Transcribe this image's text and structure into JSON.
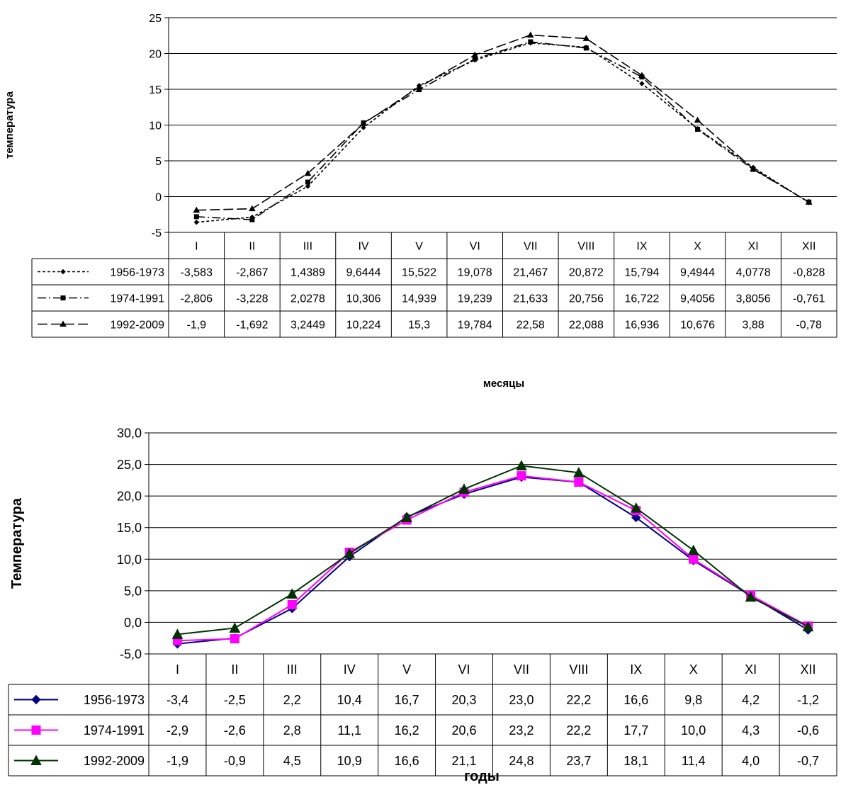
{
  "chart_data": [
    {
      "type": "line",
      "title": "",
      "ylabel": "температура",
      "xlabel": "месяцы",
      "ylim": [
        -5,
        25
      ],
      "yticks": [
        "25",
        "20",
        "15",
        "10",
        "5",
        "0",
        "-5"
      ],
      "grid": true,
      "legend": "data-table",
      "categories": [
        "I",
        "II",
        "III",
        "IV",
        "V",
        "VI",
        "VII",
        "VIII",
        "IX",
        "X",
        "XI",
        "XII"
      ],
      "series": [
        {
          "name": "1956-1973",
          "color": "#000000",
          "dash": "short",
          "marker": "diamond",
          "values": [
            -3.583,
            -2.867,
            1.4389,
            9.6444,
            15.522,
            19.078,
            21.467,
            20.872,
            15.794,
            9.4944,
            4.0778,
            -0.828
          ],
          "labels": [
            "-3,583",
            "-2,867",
            "1,4389",
            "9,6444",
            "15,522",
            "19,078",
            "21,467",
            "20,872",
            "15,794",
            "9,4944",
            "4,0778",
            "-0,828"
          ]
        },
        {
          "name": "1974-1991",
          "color": "#000000",
          "dash": "dash-dot",
          "marker": "square",
          "values": [
            -2.806,
            -3.228,
            2.0278,
            10.306,
            14.939,
            19.239,
            21.633,
            20.756,
            16.722,
            9.4056,
            3.8056,
            -0.761
          ],
          "labels": [
            "-2,806",
            "-3,228",
            "2,0278",
            "10,306",
            "14,939",
            "19,239",
            "21,633",
            "20,756",
            "16,722",
            "9,4056",
            "3,8056",
            "-0,761"
          ]
        },
        {
          "name": "1992-2009",
          "color": "#000000",
          "dash": "long",
          "marker": "triangle",
          "values": [
            -1.9,
            -1.692,
            3.2449,
            10.224,
            15.3,
            19.784,
            22.58,
            22.088,
            16.936,
            10.676,
            3.88,
            -0.78
          ],
          "labels": [
            "-1,9",
            "-1,692",
            "3,2449",
            "10,224",
            "15,3",
            "19,784",
            "22,58",
            "22,088",
            "16,936",
            "10,676",
            "3,88",
            "-0,78"
          ]
        }
      ]
    },
    {
      "type": "line",
      "title": "",
      "ylabel": "Температура",
      "xlabel": "годы",
      "ylim": [
        -5,
        30
      ],
      "yticks": [
        "30,0",
        "25,0",
        "20,0",
        "15,0",
        "10,0",
        "5,0",
        "0,0",
        "-5,0"
      ],
      "grid": true,
      "legend": "data-table",
      "categories": [
        "I",
        "II",
        "III",
        "IV",
        "V",
        "VI",
        "VII",
        "VIII",
        "IX",
        "X",
        "XI",
        "XII"
      ],
      "series": [
        {
          "name": "1956-1973",
          "color": "#000080",
          "marker": "diamond",
          "values": [
            -3.4,
            -2.5,
            2.2,
            10.4,
            16.7,
            20.3,
            23.0,
            22.2,
            16.6,
            9.8,
            4.2,
            -1.2
          ],
          "labels": [
            "-3,4",
            "-2,5",
            "2,2",
            "10,4",
            "16,7",
            "20,3",
            "23,0",
            "22,2",
            "16,6",
            "9,8",
            "4,2",
            "-1,2"
          ]
        },
        {
          "name": "1974-1991",
          "color": "#ff00ff",
          "marker": "square",
          "values": [
            -2.9,
            -2.6,
            2.8,
            11.1,
            16.2,
            20.6,
            23.2,
            22.2,
            17.7,
            10.0,
            4.3,
            -0.6
          ],
          "labels": [
            "-2,9",
            "-2,6",
            "2,8",
            "11,1",
            "16,2",
            "20,6",
            "23,2",
            "22,2",
            "17,7",
            "10,0",
            "4,3",
            "-0,6"
          ]
        },
        {
          "name": "1992-2009",
          "color": "#003300",
          "marker": "triangle",
          "values": [
            -1.9,
            -0.9,
            4.5,
            10.9,
            16.6,
            21.1,
            24.8,
            23.7,
            18.1,
            11.4,
            4.0,
            -0.7
          ],
          "labels": [
            "-1,9",
            "-0,9",
            "4,5",
            "10,9",
            "16,6",
            "21,1",
            "24,8",
            "23,7",
            "18,1",
            "11,4",
            "4,0",
            "-0,7"
          ]
        }
      ]
    }
  ]
}
